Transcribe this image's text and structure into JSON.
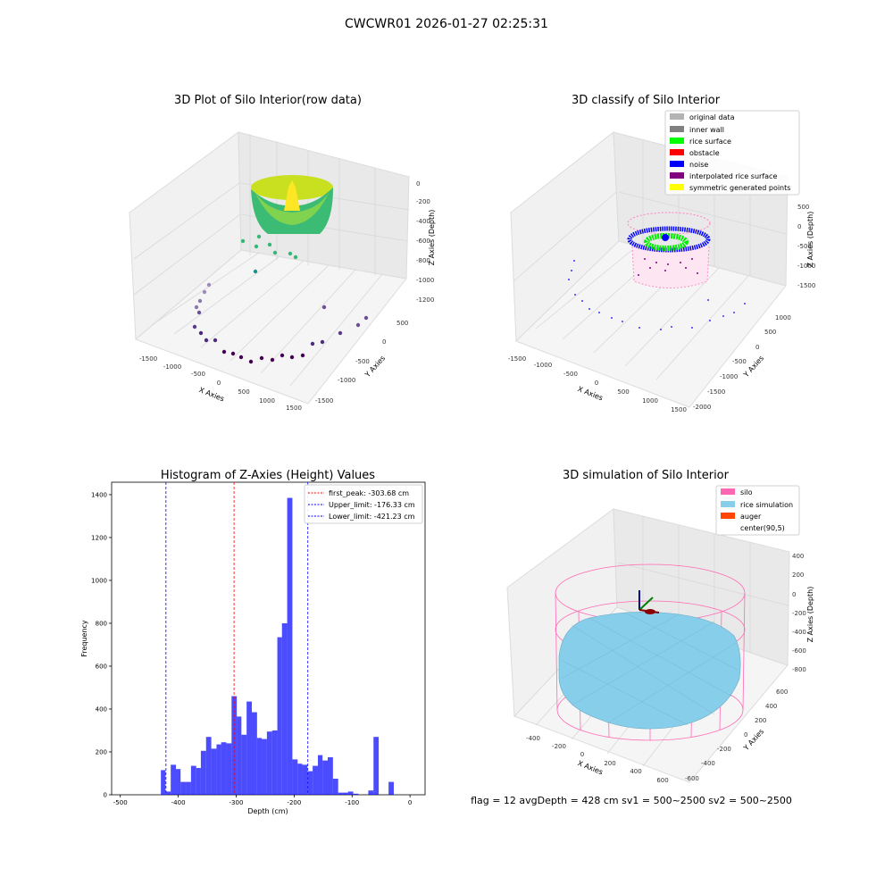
{
  "figure": {
    "suptitle": "CWCWR01 2026-01-27 02:25:31",
    "status_line": "flag = 12   avgDepth = 428 cm   sv1 = 500~2500   sv2 = 500~2500"
  },
  "panels": {
    "raw": {
      "title": "3D Plot of Silo Interior(row data)",
      "xlabel": "X Axies",
      "ylabel": "Y Axies",
      "zlabel": "Z Axies (Depth)",
      "xticks": [
        "-1500",
        "-1000",
        "-500",
        "0",
        "500",
        "1000",
        "1500"
      ],
      "yticks": [
        "-1500",
        "-1000",
        "-500",
        "0",
        "500"
      ],
      "zticks": [
        "0",
        "-200",
        "-400",
        "-600",
        "-800",
        "-1000",
        "-1200"
      ]
    },
    "classify": {
      "title": "3D classify of Silo Interior",
      "xlabel": "X Axies",
      "ylabel": "Y Axies",
      "zlabel": "Z Axies (Depth)",
      "xticks": [
        "-1500",
        "-1000",
        "-500",
        "0",
        "500",
        "1000",
        "1500"
      ],
      "yticks": [
        "-2000",
        "-1500",
        "-1000",
        "-500",
        "0",
        "500",
        "1000"
      ],
      "zticks": [
        "500",
        "0",
        "-500",
        "-1000",
        "-1500"
      ],
      "legend": [
        {
          "label": "original data",
          "color": "#b3b3b3"
        },
        {
          "label": "inner wall",
          "color": "#808080"
        },
        {
          "label": "rice surface",
          "color": "#00ff00"
        },
        {
          "label": "obstacle",
          "color": "#ff0000"
        },
        {
          "label": "noise",
          "color": "#0000ff"
        },
        {
          "label": "interpolated rice surface",
          "color": "#800080"
        },
        {
          "label": "symmetric generated points",
          "color": "#ffff00"
        }
      ]
    },
    "simulation": {
      "title": "3D simulation of Silo Interior",
      "xlabel": "X Axies",
      "ylabel": "Y Axies",
      "zlabel": "Z Axies (Depth)",
      "xticks": [
        "-400",
        "-200",
        "0",
        "200",
        "400",
        "600"
      ],
      "yticks": [
        "-600",
        "-400",
        "-200",
        "0",
        "200",
        "400",
        "600"
      ],
      "zticks": [
        "400",
        "200",
        "0",
        "-200",
        "-400",
        "-600",
        "-800"
      ],
      "legend": [
        {
          "label": "silo",
          "color": "#ff69b4"
        },
        {
          "label": "rice simulation",
          "color": "#87ceeb"
        },
        {
          "label": "auger",
          "color": "#ff4500"
        },
        {
          "label": "center(90,5)",
          "color": ""
        }
      ]
    }
  },
  "chart_data": [
    {
      "type": "scatter",
      "title": "3D Plot of Silo Interior(row data)",
      "xlabel": "X Axies",
      "ylabel": "Y Axies",
      "zlabel": "Z Axies (Depth)",
      "xlim": [
        -1500,
        1500
      ],
      "ylim": [
        -1500,
        500
      ],
      "zlim": [
        -1200,
        0
      ]
    },
    {
      "type": "scatter",
      "title": "3D classify of Silo Interior",
      "xlabel": "X Axies",
      "ylabel": "Y Axies",
      "zlabel": "Z Axies (Depth)",
      "xlim": [
        -1500,
        1500
      ],
      "ylim": [
        -2000,
        1000
      ],
      "zlim": [
        -1500,
        500
      ]
    },
    {
      "type": "bar",
      "title": "Histogram of Z-Axies (Height) Values",
      "xlabel": "Depth (cm)",
      "ylabel": "Frequency",
      "xlim": [
        -500,
        0
      ],
      "ylim": [
        0,
        1400
      ],
      "xticks": [
        -500,
        -400,
        -300,
        -200,
        -100,
        0
      ],
      "yticks": [
        0,
        200,
        400,
        600,
        800,
        1000,
        1200,
        1400
      ],
      "bar_color": "#0000ff",
      "bins": [
        {
          "x0": -430,
          "x1": -422,
          "count": 115
        },
        {
          "x0": -422,
          "x1": -413,
          "count": 15
        },
        {
          "x0": -413,
          "x1": -404,
          "count": 140
        },
        {
          "x0": -404,
          "x1": -396,
          "count": 120
        },
        {
          "x0": -396,
          "x1": -387,
          "count": 60
        },
        {
          "x0": -387,
          "x1": -378,
          "count": 60
        },
        {
          "x0": -378,
          "x1": -369,
          "count": 135
        },
        {
          "x0": -369,
          "x1": -361,
          "count": 125
        },
        {
          "x0": -361,
          "x1": -352,
          "count": 205
        },
        {
          "x0": -352,
          "x1": -343,
          "count": 270
        },
        {
          "x0": -343,
          "x1": -334,
          "count": 215
        },
        {
          "x0": -334,
          "x1": -326,
          "count": 235
        },
        {
          "x0": -326,
          "x1": -317,
          "count": 245
        },
        {
          "x0": -317,
          "x1": -308,
          "count": 240
        },
        {
          "x0": -308,
          "x1": -299,
          "count": 460
        },
        {
          "x0": -299,
          "x1": -291,
          "count": 365
        },
        {
          "x0": -291,
          "x1": -282,
          "count": 280
        },
        {
          "x0": -282,
          "x1": -273,
          "count": 435
        },
        {
          "x0": -273,
          "x1": -264,
          "count": 385
        },
        {
          "x0": -264,
          "x1": -256,
          "count": 265
        },
        {
          "x0": -256,
          "x1": -247,
          "count": 260
        },
        {
          "x0": -247,
          "x1": -238,
          "count": 295
        },
        {
          "x0": -238,
          "x1": -229,
          "count": 300
        },
        {
          "x0": -229,
          "x1": -221,
          "count": 735
        },
        {
          "x0": -221,
          "x1": -212,
          "count": 800
        },
        {
          "x0": -212,
          "x1": -203,
          "count": 1385
        },
        {
          "x0": -203,
          "x1": -194,
          "count": 165
        },
        {
          "x0": -194,
          "x1": -186,
          "count": 145
        },
        {
          "x0": -186,
          "x1": -177,
          "count": 140
        },
        {
          "x0": -177,
          "x1": -168,
          "count": 110
        },
        {
          "x0": -168,
          "x1": -159,
          "count": 135
        },
        {
          "x0": -159,
          "x1": -151,
          "count": 185
        },
        {
          "x0": -151,
          "x1": -142,
          "count": 160
        },
        {
          "x0": -142,
          "x1": -133,
          "count": 175
        },
        {
          "x0": -133,
          "x1": -124,
          "count": 75
        },
        {
          "x0": -124,
          "x1": -116,
          "count": 10
        },
        {
          "x0": -116,
          "x1": -107,
          "count": 10
        },
        {
          "x0": -107,
          "x1": -98,
          "count": 15
        },
        {
          "x0": -98,
          "x1": -89,
          "count": 5
        },
        {
          "x0": -72,
          "x1": -63,
          "count": 20
        },
        {
          "x0": -63,
          "x1": -54,
          "count": 270
        },
        {
          "x0": -37,
          "x1": -28,
          "count": 60
        }
      ],
      "vlines": [
        {
          "label": "first_peak: -303.68 cm",
          "x": -303.68,
          "color": "#ff0000"
        },
        {
          "label": "Upper_limit: -176.33 cm",
          "x": -176.33,
          "color": "#0000ff"
        },
        {
          "label": "Lower_limit: -421.23 cm",
          "x": -421.23,
          "color": "#0000ff"
        }
      ],
      "legend_position": "top-right"
    },
    {
      "type": "scatter",
      "title": "3D simulation of Silo Interior",
      "xlabel": "X Axies",
      "ylabel": "Y Axies",
      "zlabel": "Z Axies (Depth)",
      "xlim": [
        -400,
        600
      ],
      "ylim": [
        -600,
        600
      ],
      "zlim": [
        -800,
        400
      ]
    }
  ]
}
